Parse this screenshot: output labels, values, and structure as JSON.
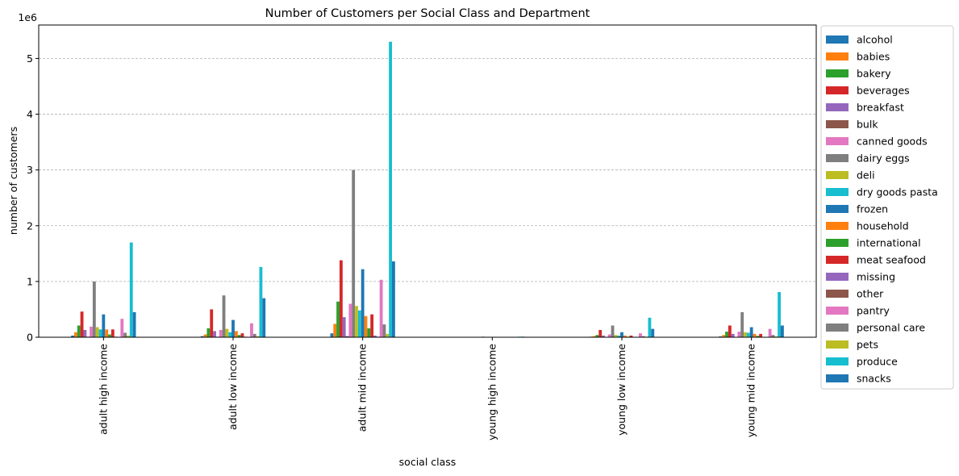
{
  "chart_data": {
    "type": "bar",
    "title": "Number of Customers per Social Class and Department",
    "xlabel": "social class",
    "ylabel": "number of customers",
    "y_scale_label": "1e6",
    "ylim": [
      0,
      5.6
    ],
    "y_ticks": [
      0,
      1,
      2,
      3,
      4,
      5
    ],
    "y_unit_multiplier": 1000000,
    "grid": "horizontal dashed",
    "legend_position": "outside right",
    "categories": [
      "adult high income",
      "adult low income",
      "adult mid income",
      "young high income",
      "young low income",
      "young mid income"
    ],
    "series": [
      {
        "name": "alcohol",
        "color": "#1f77b4",
        "values": [
          0.03,
          0.02,
          0.07,
          0.0,
          0.01,
          0.015
        ]
      },
      {
        "name": "babies",
        "color": "#ff7f0e",
        "values": [
          0.09,
          0.05,
          0.24,
          0.0,
          0.02,
          0.04
        ]
      },
      {
        "name": "bakery",
        "color": "#2ca02c",
        "values": [
          0.21,
          0.16,
          0.64,
          0.0,
          0.04,
          0.1
        ]
      },
      {
        "name": "beverages",
        "color": "#d62728",
        "values": [
          0.46,
          0.5,
          1.38,
          0.0,
          0.13,
          0.21
        ]
      },
      {
        "name": "breakfast",
        "color": "#9467bd",
        "values": [
          0.13,
          0.11,
          0.36,
          0.0,
          0.03,
          0.06
        ]
      },
      {
        "name": "bulk",
        "color": "#8c564b",
        "values": [
          0.01,
          0.01,
          0.02,
          0.0,
          0.004,
          0.006
        ]
      },
      {
        "name": "canned goods",
        "color": "#e377c2",
        "values": [
          0.19,
          0.13,
          0.6,
          0.0,
          0.05,
          0.1
        ]
      },
      {
        "name": "dairy eggs",
        "color": "#7f7f7f",
        "values": [
          1.0,
          0.75,
          3.0,
          0.01,
          0.21,
          0.45
        ]
      },
      {
        "name": "deli",
        "color": "#bcbd22",
        "values": [
          0.18,
          0.15,
          0.56,
          0.0,
          0.04,
          0.09
        ]
      },
      {
        "name": "dry goods pasta",
        "color": "#17becf",
        "values": [
          0.14,
          0.09,
          0.48,
          0.0,
          0.03,
          0.08
        ]
      },
      {
        "name": "frozen",
        "color": "#1f77b4",
        "values": [
          0.41,
          0.31,
          1.22,
          0.0,
          0.09,
          0.18
        ]
      },
      {
        "name": "household",
        "color": "#ff7f0e",
        "values": [
          0.14,
          0.11,
          0.38,
          0.0,
          0.03,
          0.06
        ]
      },
      {
        "name": "international",
        "color": "#2ca02c",
        "values": [
          0.05,
          0.04,
          0.16,
          0.0,
          0.01,
          0.025
        ]
      },
      {
        "name": "meat seafood",
        "color": "#d62728",
        "values": [
          0.14,
          0.07,
          0.41,
          0.0,
          0.03,
          0.06
        ]
      },
      {
        "name": "missing",
        "color": "#9467bd",
        "values": [
          0.01,
          0.01,
          0.03,
          0.0,
          0.003,
          0.005
        ]
      },
      {
        "name": "other",
        "color": "#8c564b",
        "values": [
          0.005,
          0.005,
          0.01,
          0.0,
          0.002,
          0.003
        ]
      },
      {
        "name": "pantry",
        "color": "#e377c2",
        "values": [
          0.33,
          0.25,
          1.03,
          0.0,
          0.07,
          0.15
        ]
      },
      {
        "name": "personal care",
        "color": "#7f7f7f",
        "values": [
          0.08,
          0.06,
          0.23,
          0.0,
          0.02,
          0.04
        ]
      },
      {
        "name": "pets",
        "color": "#bcbd22",
        "values": [
          0.03,
          0.02,
          0.06,
          0.0,
          0.01,
          0.015
        ]
      },
      {
        "name": "produce",
        "color": "#17becf",
        "values": [
          1.7,
          1.26,
          5.3,
          0.01,
          0.35,
          0.81
        ]
      },
      {
        "name": "snacks",
        "color": "#1f77b4",
        "values": [
          0.45,
          0.7,
          1.36,
          0.01,
          0.15,
          0.21
        ]
      }
    ]
  }
}
